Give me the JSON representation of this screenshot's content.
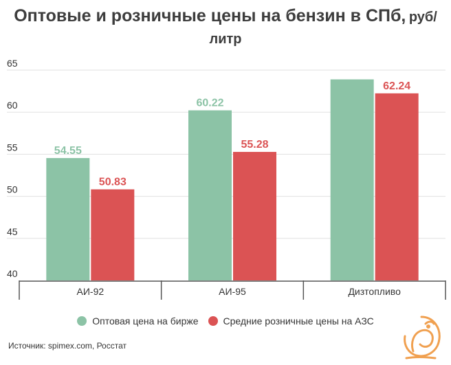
{
  "title": {
    "main": "Оптовые и розничные цены на бензин в СПб,",
    "unit": "руб/",
    "unit_cont": "литр"
  },
  "chart_data": {
    "type": "bar",
    "categories": [
      "АИ-92",
      "АИ-95",
      "Дизтопливо"
    ],
    "series": [
      {
        "name": "Оптовая цена на бирже",
        "values": [
          54.55,
          60.22,
          63.9
        ],
        "labels": [
          "54.55",
          "60.22",
          ""
        ],
        "color": "#8cc3a6"
      },
      {
        "name": "Средние розничные цены на АЗС",
        "values": [
          50.83,
          55.28,
          62.24
        ],
        "labels": [
          "50.83",
          "55.28",
          "62.24"
        ],
        "color": "#db5354"
      }
    ],
    "ylim": [
      40,
      65
    ],
    "yticks": [
      40,
      45,
      50,
      55,
      60,
      65
    ],
    "grid": true,
    "legend_position": "bottom"
  },
  "source": "Источник: spimex.com, Росстат",
  "logo": {
    "icon": "bird-logo-icon",
    "color": "#f0a050"
  }
}
